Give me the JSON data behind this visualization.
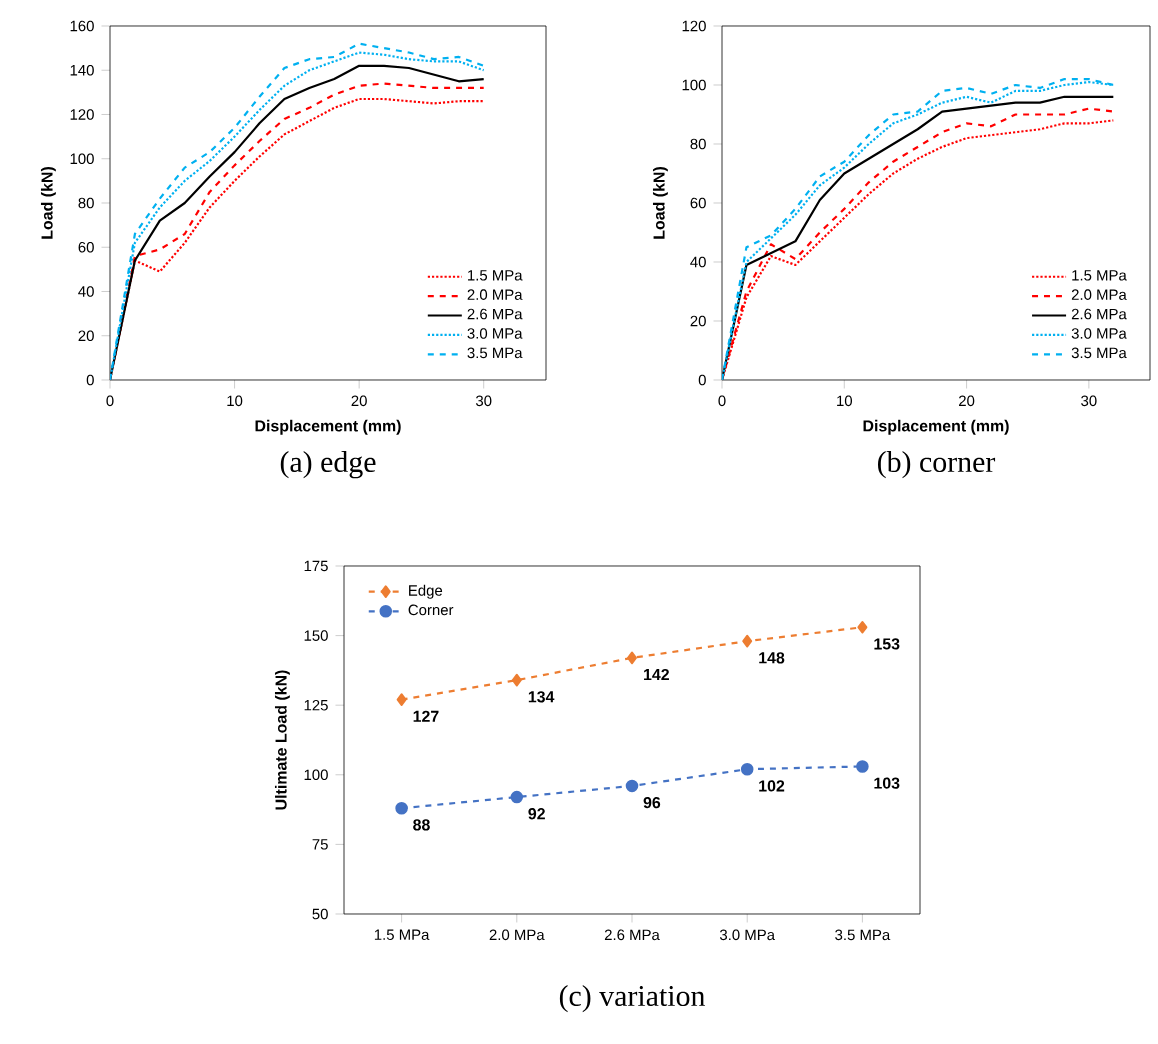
{
  "chart_data": [
    {
      "type": "line",
      "title": "(a) edge",
      "xlabel": "Displacement (mm)",
      "ylabel": "Load (kN)",
      "xlim": [
        0,
        35
      ],
      "xticks": [
        0,
        10,
        20,
        30
      ],
      "ylim": [
        0,
        160
      ],
      "yticks": [
        0,
        20,
        40,
        60,
        80,
        100,
        120,
        140,
        160
      ],
      "legend": "bottom right",
      "x": [
        0,
        2,
        4,
        6,
        8,
        10,
        12,
        14,
        16,
        18,
        20,
        22,
        24,
        26,
        28,
        30
      ],
      "series": [
        {
          "name": "1.5 MPa",
          "color": "#ff0000",
          "line_style": "dotted",
          "values": [
            0,
            54,
            49,
            62,
            78,
            90,
            101,
            111,
            117,
            123,
            127,
            127,
            126,
            125,
            126,
            126
          ]
        },
        {
          "name": "2.0 MPa",
          "color": "#ff0000",
          "line_style": "dashed",
          "values": [
            0,
            56,
            59,
            66,
            85,
            97,
            108,
            118,
            123,
            129,
            133,
            134,
            133,
            132,
            132,
            132
          ]
        },
        {
          "name": "2.6 MPa",
          "color": "#000000",
          "line_style": "solid",
          "values": [
            0,
            54,
            72,
            80,
            92,
            103,
            116,
            127,
            132,
            136,
            142,
            142,
            141,
            138,
            135,
            136
          ]
        },
        {
          "name": "3.0 MPa",
          "color": "#00b0f0",
          "line_style": "dotted",
          "values": [
            0,
            62,
            78,
            90,
            99,
            110,
            122,
            133,
            140,
            144,
            148,
            147,
            145,
            144,
            144,
            140
          ]
        },
        {
          "name": "3.5 MPa",
          "color": "#00b0f0",
          "line_style": "dashed",
          "values": [
            0,
            66,
            82,
            96,
            103,
            114,
            128,
            141,
            145,
            146,
            152,
            150,
            148,
            145,
            146,
            142
          ]
        }
      ]
    },
    {
      "type": "line",
      "title": "(b) corner",
      "xlabel": "Displacement (mm)",
      "ylabel": "Load (kN)",
      "xlim": [
        0,
        35
      ],
      "xticks": [
        0,
        10,
        20,
        30
      ],
      "ylim": [
        0,
        120
      ],
      "yticks": [
        0,
        20,
        40,
        60,
        80,
        100,
        120
      ],
      "legend": "bottom right",
      "x": [
        0,
        2,
        4,
        6,
        8,
        10,
        12,
        14,
        16,
        18,
        20,
        22,
        24,
        26,
        28,
        30,
        32
      ],
      "series": [
        {
          "name": "1.5 MPa",
          "color": "#ff0000",
          "line_style": "dotted",
          "values": [
            0,
            28,
            42,
            39,
            47,
            55,
            63,
            70,
            75,
            79,
            82,
            83,
            84,
            85,
            87,
            87,
            88
          ]
        },
        {
          "name": "2.0 MPa",
          "color": "#ff0000",
          "line_style": "dashed",
          "values": [
            0,
            30,
            46,
            41,
            50,
            58,
            67,
            74,
            79,
            84,
            87,
            86,
            90,
            90,
            90,
            92,
            91
          ]
        },
        {
          "name": "2.6 MPa",
          "color": "#000000",
          "line_style": "solid",
          "values": [
            0,
            39,
            43,
            47,
            61,
            70,
            75,
            80,
            85,
            91,
            92,
            93,
            94,
            94,
            96,
            96,
            96
          ]
        },
        {
          "name": "3.0 MPa",
          "color": "#00b0f0",
          "line_style": "dotted",
          "values": [
            0,
            40,
            48,
            56,
            66,
            72,
            80,
            87,
            90,
            94,
            96,
            94,
            98,
            98,
            100,
            101,
            100
          ]
        },
        {
          "name": "3.5 MPa",
          "color": "#00b0f0",
          "line_style": "dashed",
          "values": [
            0,
            45,
            49,
            58,
            69,
            74,
            83,
            90,
            91,
            98,
            99,
            97,
            100,
            99,
            102,
            102,
            100
          ]
        }
      ]
    },
    {
      "type": "line",
      "title": "(c) variation",
      "ylabel": "Ultimate Load (kN)",
      "ylim": [
        50,
        175
      ],
      "yticks": [
        50,
        75,
        100,
        125,
        150,
        175
      ],
      "legend": "top left",
      "data_labels": true,
      "line_style": "dashed",
      "categories": [
        "1.5 MPa",
        "2.0 MPa",
        "2.6 MPa",
        "3.0 MPa",
        "3.5 MPa"
      ],
      "series": [
        {
          "name": "Edge",
          "color": "#ed7d31",
          "marker": "diamond",
          "values": [
            127,
            134,
            142,
            148,
            153
          ]
        },
        {
          "name": "Corner",
          "color": "#4472c4",
          "marker": "circle",
          "values": [
            88,
            92,
            96,
            102,
            103
          ]
        }
      ]
    }
  ]
}
